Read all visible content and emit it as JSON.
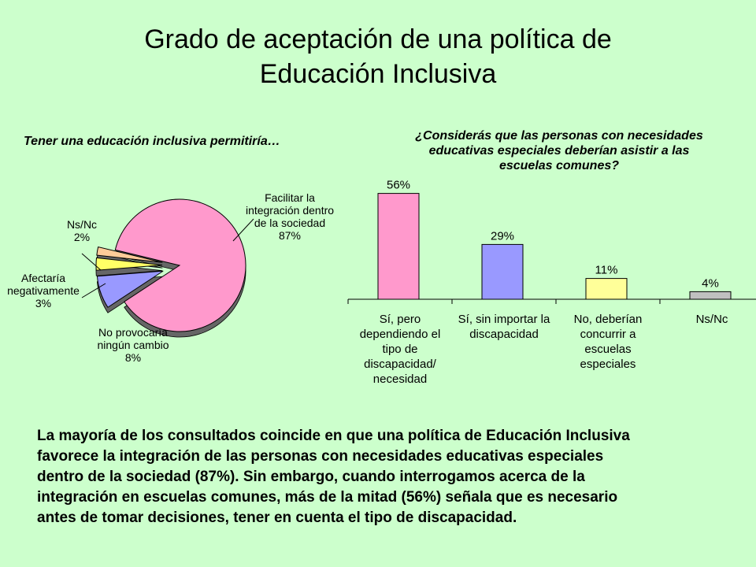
{
  "slide": {
    "title_line1": "Grado de aceptación de una política de",
    "title_line2": "Educación Inclusiva"
  },
  "chart_data": [
    {
      "type": "pie",
      "title": "Tener una educación inclusiva permitiría…",
      "slices": [
        {
          "label": [
            "Facilitar la",
            "integración dentro",
            "de la sociedad",
            "87%"
          ],
          "value": 87,
          "color": "#ff99cc"
        },
        {
          "label": [
            "No provocaría",
            "ningún cambio",
            "8%"
          ],
          "value": 8,
          "color": "#9999ff"
        },
        {
          "label": [
            "Afectaría",
            "negativamente",
            "3%"
          ],
          "value": 3,
          "color": "#ffff66"
        },
        {
          "label": [
            "Ns/Nc",
            "2%"
          ],
          "value": 2,
          "color": "#ffcc99"
        }
      ]
    },
    {
      "type": "bar",
      "title": "¿Considerás que las personas con necesidades educativas especiales deberían asistir a las escuelas comunes?",
      "title_lines": [
        "¿Considerás que las personas con necesidades",
        "educativas especiales deberían asistir a las",
        "escuelas comunes?"
      ],
      "categories": [
        [
          "Sí, pero",
          "dependiendo el",
          "tipo de",
          "discapacidad/",
          "necesidad"
        ],
        [
          "Sí, sin importar la",
          "discapacidad"
        ],
        [
          "No, deberían",
          "concurrir a",
          "escuelas",
          "especiales"
        ],
        [
          "Ns/Nc"
        ]
      ],
      "values": [
        56,
        29,
        11,
        4
      ],
      "value_labels": [
        "56%",
        "29%",
        "11%",
        "4%"
      ],
      "colors": [
        "#ff99cc",
        "#9999ff",
        "#ffff99",
        "#c0c0c0"
      ]
    }
  ],
  "summary": {
    "text": [
      "La mayoría de los consultados coincide en que una política de Educación Inclusiva",
      "favorece la integración de las personas con necesidades educativas especiales",
      "dentro de la sociedad (87%). Sin embargo, cuando interrogamos acerca de la",
      "integración en escuelas comunes, más de la mitad (56%) señala que es necesario",
      "antes de tomar decisiones, tener en cuenta el tipo de discapacidad."
    ]
  }
}
